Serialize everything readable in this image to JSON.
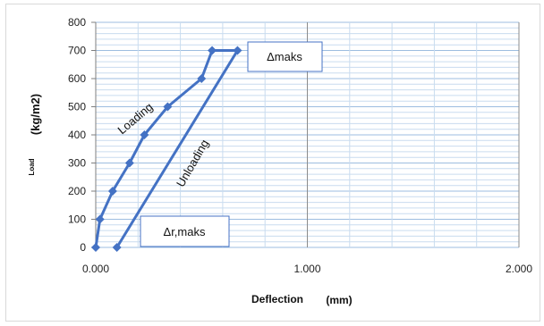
{
  "chart_data": {
    "type": "line",
    "title": "",
    "xlabel": "Deflection",
    "xunit": "(mm)",
    "ylabel": "Load",
    "yunit": "(kg/m2)",
    "xlim": [
      0,
      2
    ],
    "ylim": [
      0,
      800
    ],
    "x_ticks": [
      0,
      1,
      2
    ],
    "x_tick_labels": [
      "0.000",
      "1.000",
      "2.000"
    ],
    "y_ticks": [
      0,
      100,
      200,
      300,
      400,
      500,
      600,
      700,
      800
    ],
    "y_tick_labels": [
      "0",
      "100",
      "200",
      "300",
      "400",
      "500",
      "600",
      "700",
      "800"
    ],
    "grid": true,
    "color": "#4472c4",
    "series": [
      {
        "x": [
          0.0,
          0.02,
          0.08,
          0.16,
          0.23,
          0.34,
          0.5,
          0.55,
          0.67,
          0.1
        ],
        "y": [
          0,
          100,
          200,
          300,
          400,
          500,
          600,
          700,
          700,
          0
        ]
      }
    ],
    "annotations": {
      "loading": "Loading",
      "unloading": "Unloading",
      "delta_max": "Δmaks",
      "delta_r_max": "Δr,maks"
    }
  }
}
